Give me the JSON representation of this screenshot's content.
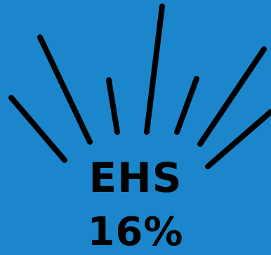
{
  "graphic": {
    "background_color": "#1b86cb",
    "ray_color": "#000000",
    "ray_count": 8
  },
  "label": {
    "name": "EHS",
    "value": "16%"
  }
}
